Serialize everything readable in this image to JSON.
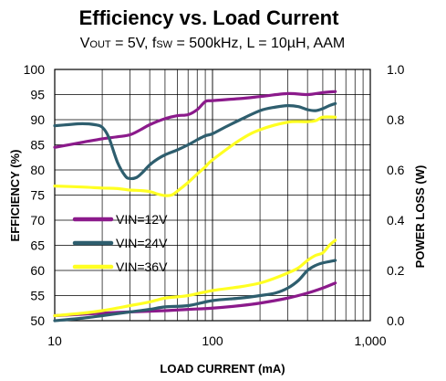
{
  "chart_data": {
    "type": "line",
    "title": "Efficiency vs. Load Current",
    "subtitle": {
      "v": "V",
      "out": "OUT",
      "eq1": " = 5V, f",
      "sw": "SW",
      "rest": " = 500kHz, L = 10µH, AAM"
    },
    "xlabel": "LOAD CURRENT  (mA)",
    "ylabel_left": "EFFICIENCY  (%)",
    "ylabel_right": "POWER LOSS (W)",
    "x_scale": "log",
    "xlim": [
      10,
      1000
    ],
    "ylim_left": [
      50,
      100
    ],
    "ylim_right": [
      0,
      1.0
    ],
    "x_ticks": [
      {
        "value": 10,
        "label": "10"
      },
      {
        "value": 100,
        "label": "100"
      },
      {
        "value": 1000,
        "label": "1,000"
      }
    ],
    "y_ticks_left": [
      {
        "value": 50,
        "label": "50"
      },
      {
        "value": 55,
        "label": "55"
      },
      {
        "value": 60,
        "label": "60"
      },
      {
        "value": 65,
        "label": "65"
      },
      {
        "value": 70,
        "label": "70"
      },
      {
        "value": 75,
        "label": "75"
      },
      {
        "value": 80,
        "label": "80"
      },
      {
        "value": 85,
        "label": "85"
      },
      {
        "value": 90,
        "label": "90"
      },
      {
        "value": 95,
        "label": "95"
      },
      {
        "value": 100,
        "label": "100"
      }
    ],
    "y_ticks_right": [
      {
        "value": 0.0,
        "label": "0.0"
      },
      {
        "value": 0.2,
        "label": "0.2"
      },
      {
        "value": 0.4,
        "label": "0.4"
      },
      {
        "value": 0.6,
        "label": "0.6"
      },
      {
        "value": 0.8,
        "label": "0.8"
      },
      {
        "value": 1.0,
        "label": "1.0"
      }
    ],
    "grid": true,
    "legend_position": "lower-left",
    "series": [
      {
        "name": "VIN=12V",
        "color": "#8B1A8B",
        "efficiency": {
          "x": [
            10,
            15,
            20,
            25,
            30,
            35,
            40,
            50,
            60,
            70,
            80,
            90,
            100,
            150,
            200,
            300,
            400,
            500,
            600
          ],
          "y": [
            84.5,
            85.5,
            86.2,
            86.6,
            87.0,
            88.0,
            89.0,
            90.2,
            90.8,
            91.0,
            92.0,
            93.6,
            93.8,
            94.2,
            94.6,
            95.2,
            95.0,
            95.4,
            95.6
          ]
        },
        "power_loss": {
          "x": [
            10,
            20,
            30,
            50,
            70,
            100,
            150,
            200,
            300,
            400,
            500,
            600
          ],
          "y": [
            0.02,
            0.03,
            0.035,
            0.04,
            0.045,
            0.05,
            0.06,
            0.07,
            0.09,
            0.11,
            0.13,
            0.15
          ]
        }
      },
      {
        "name": "VIN=24V",
        "color": "#2E5E6E",
        "efficiency": {
          "x": [
            10,
            12,
            15,
            18,
            20,
            22,
            25,
            28,
            30,
            33,
            36,
            40,
            45,
            50,
            60,
            70,
            80,
            90,
            100,
            120,
            150,
            200,
            250,
            300,
            350,
            400,
            450,
            500,
            550,
            600
          ],
          "y": [
            88.8,
            89.0,
            89.2,
            89.0,
            88.5,
            86.5,
            81.5,
            78.8,
            78.3,
            78.5,
            79.5,
            81.0,
            82.2,
            83.0,
            84.0,
            85.0,
            86.0,
            86.8,
            87.2,
            88.5,
            90.0,
            91.8,
            92.5,
            92.8,
            92.6,
            92.0,
            91.8,
            92.2,
            92.8,
            93.2
          ]
        },
        "power_loss": {
          "x": [
            10,
            15,
            20,
            30,
            40,
            50,
            70,
            100,
            150,
            200,
            250,
            300,
            350,
            400,
            450,
            500,
            600
          ],
          "y": [
            0.0,
            0.01,
            0.02,
            0.035,
            0.045,
            0.055,
            0.06,
            0.08,
            0.09,
            0.1,
            0.11,
            0.13,
            0.16,
            0.2,
            0.22,
            0.23,
            0.24
          ]
        }
      },
      {
        "name": "VIN=36V",
        "color": "#FFFF22",
        "efficiency": {
          "x": [
            10,
            15,
            20,
            25,
            30,
            35,
            40,
            45,
            50,
            55,
            60,
            70,
            80,
            90,
            100,
            150,
            200,
            300,
            400,
            450,
            500,
            600
          ],
          "y": [
            76.8,
            76.6,
            76.4,
            76.3,
            76.0,
            75.9,
            75.7,
            75.2,
            74.9,
            75.0,
            75.8,
            77.5,
            79.2,
            80.6,
            82.0,
            86.0,
            88.0,
            89.5,
            89.6,
            89.8,
            90.5,
            90.5
          ]
        },
        "power_loss": {
          "x": [
            10,
            15,
            20,
            30,
            40,
            50,
            60,
            70,
            100,
            150,
            200,
            250,
            300,
            350,
            400,
            450,
            500,
            550,
            600
          ],
          "y": [
            0.02,
            0.03,
            0.04,
            0.06,
            0.075,
            0.09,
            0.095,
            0.1,
            0.12,
            0.135,
            0.15,
            0.17,
            0.19,
            0.21,
            0.24,
            0.26,
            0.27,
            0.3,
            0.32
          ]
        }
      }
    ]
  }
}
